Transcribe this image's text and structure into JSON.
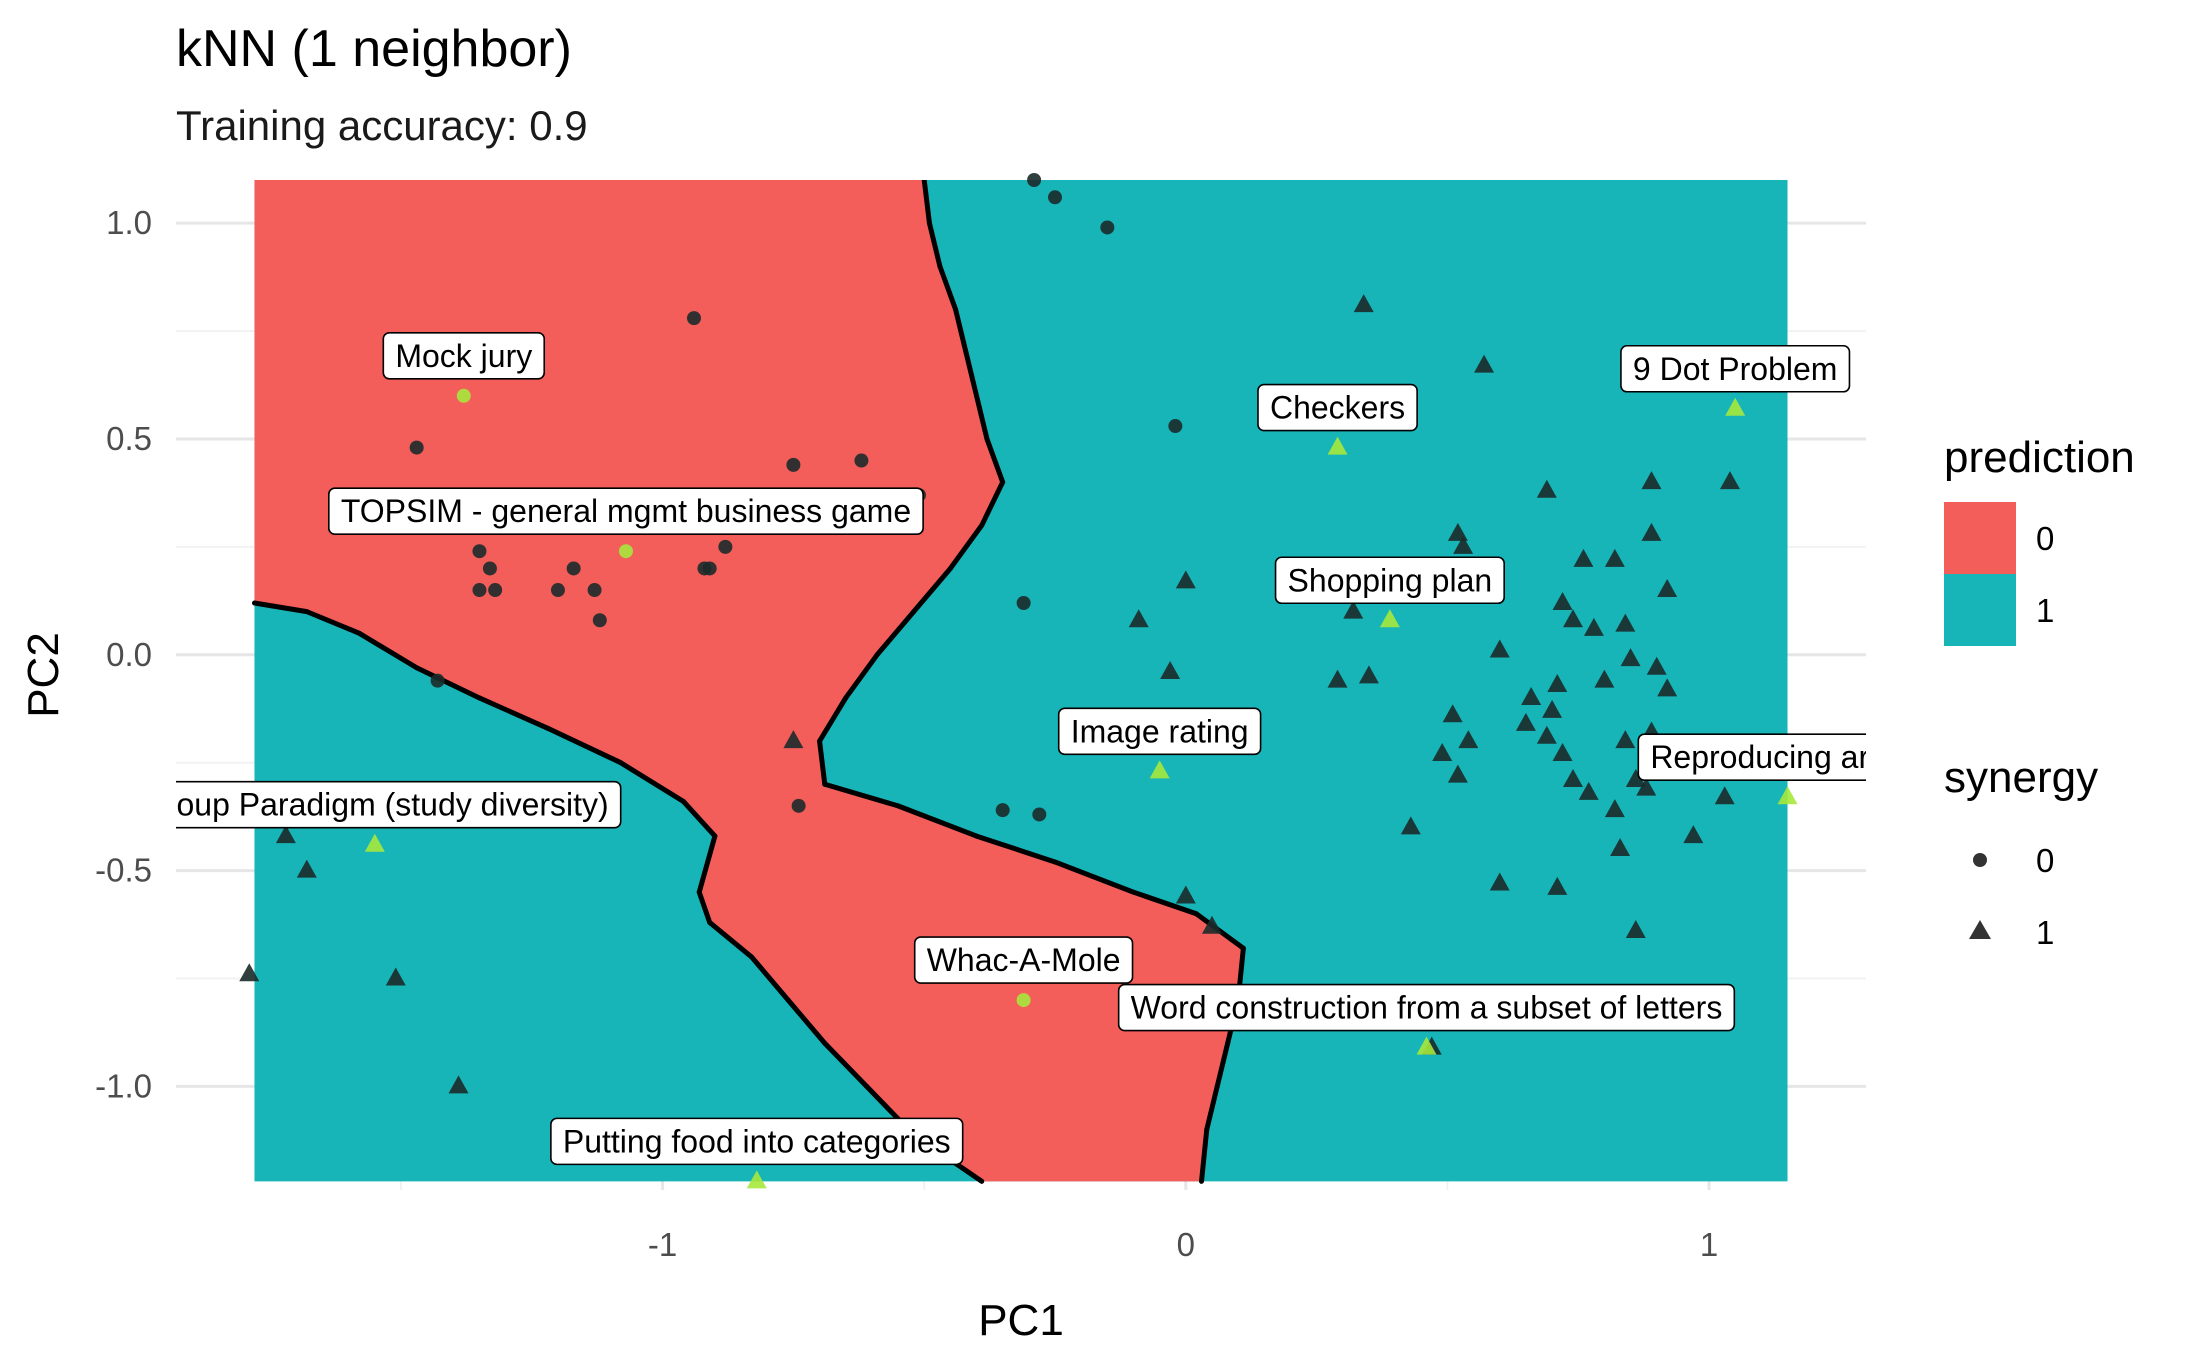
{
  "chart_data": {
    "type": "scatter",
    "title": "kNN (1 neighbor)",
    "subtitle": "Training accuracy: 0.9",
    "xlabel": "PC1",
    "ylabel": "PC2",
    "xlim": [
      -1.93,
      1.3
    ],
    "ylim": [
      -1.24,
      1.1
    ],
    "x_ticks": [
      -1,
      0,
      1
    ],
    "x_tick_labels": [
      "-1",
      "0",
      "1"
    ],
    "y_ticks": [
      -1.0,
      -0.5,
      0.0,
      0.5,
      1.0
    ],
    "y_tick_labels": [
      "-1.0",
      "-0.5",
      "0.0",
      "0.5",
      "1.0"
    ],
    "grid": true,
    "colors": {
      "prediction_0": "#F35E5A",
      "prediction_1": "#17B5B8",
      "highlight": "#A6E83C",
      "point": "#1c2a2a",
      "boundary": "#000000"
    },
    "legends": {
      "prediction": {
        "title": "prediction",
        "entries": [
          "0",
          "1"
        ]
      },
      "synergy": {
        "title": "synergy",
        "entries": [
          "0",
          "1"
        ]
      }
    },
    "legend_position": "right",
    "region_bounds": {
      "x": [
        -1.78,
        1.15
      ],
      "y": [
        -1.22,
        1.1
      ]
    },
    "regions": [
      {
        "prediction": "0",
        "polygon": [
          [
            -1.78,
            1.1
          ],
          [
            -0.5,
            1.1
          ],
          [
            -0.49,
            1.0
          ],
          [
            -0.47,
            0.9
          ],
          [
            -0.44,
            0.8
          ],
          [
            -0.42,
            0.7
          ],
          [
            -0.4,
            0.6
          ],
          [
            -0.38,
            0.5
          ],
          [
            -0.35,
            0.4
          ],
          [
            -0.39,
            0.3
          ],
          [
            -0.45,
            0.2
          ],
          [
            -0.52,
            0.1
          ],
          [
            -0.59,
            0.0
          ],
          [
            -0.65,
            -0.1
          ],
          [
            -0.7,
            -0.2
          ],
          [
            -0.69,
            -0.3
          ],
          [
            -0.55,
            -0.35
          ],
          [
            -0.4,
            -0.42
          ],
          [
            -0.25,
            -0.48
          ],
          [
            -0.1,
            -0.55
          ],
          [
            0.02,
            -0.6
          ],
          [
            0.11,
            -0.68
          ],
          [
            0.1,
            -0.8
          ],
          [
            0.08,
            -0.9
          ],
          [
            0.06,
            -1.0
          ],
          [
            0.04,
            -1.1
          ],
          [
            0.03,
            -1.22
          ],
          [
            -0.39,
            -1.22
          ],
          [
            -0.45,
            -1.17
          ],
          [
            -0.53,
            -1.1
          ],
          [
            -0.61,
            -1.0
          ],
          [
            -0.69,
            -0.9
          ],
          [
            -0.76,
            -0.8
          ],
          [
            -0.83,
            -0.7
          ],
          [
            -0.91,
            -0.62
          ],
          [
            -0.93,
            -0.55
          ],
          [
            -0.9,
            -0.42
          ],
          [
            -0.96,
            -0.34
          ],
          [
            -1.08,
            -0.25
          ],
          [
            -1.22,
            -0.17
          ],
          [
            -1.35,
            -0.1
          ],
          [
            -1.47,
            -0.03
          ],
          [
            -1.58,
            0.05
          ],
          [
            -1.68,
            0.1
          ],
          [
            -1.78,
            0.12
          ]
        ]
      }
    ],
    "series": [
      {
        "name": "0",
        "shape": "circle",
        "points": [
          [
            -0.29,
            1.1
          ],
          [
            -0.25,
            1.06
          ],
          [
            -0.15,
            0.99
          ],
          [
            -0.94,
            0.78
          ],
          [
            -1.47,
            0.48
          ],
          [
            -0.75,
            0.44
          ],
          [
            -0.62,
            0.45
          ],
          [
            -0.51,
            0.37
          ],
          [
            -1.35,
            0.24
          ],
          [
            -1.33,
            0.2
          ],
          [
            -1.35,
            0.15
          ],
          [
            -1.32,
            0.15
          ],
          [
            -1.2,
            0.15
          ],
          [
            -1.17,
            0.2
          ],
          [
            -1.13,
            0.15
          ],
          [
            -1.12,
            0.08
          ],
          [
            -0.92,
            0.2
          ],
          [
            -0.91,
            0.2
          ],
          [
            -0.88,
            0.25
          ],
          [
            -0.31,
            0.12
          ],
          [
            -0.02,
            0.53
          ],
          [
            -1.43,
            -0.06
          ],
          [
            -0.74,
            -0.35
          ],
          [
            -0.35,
            -0.36
          ],
          [
            -0.28,
            -0.37
          ]
        ]
      },
      {
        "name": "1",
        "shape": "triangle",
        "points": [
          [
            0.34,
            0.81
          ],
          [
            0.57,
            0.67
          ],
          [
            0.69,
            0.38
          ],
          [
            0.89,
            0.4
          ],
          [
            1.04,
            0.4
          ],
          [
            0.52,
            0.28
          ],
          [
            0.53,
            0.25
          ],
          [
            0.76,
            0.22
          ],
          [
            0.82,
            0.22
          ],
          [
            0.89,
            0.28
          ],
          [
            0.72,
            0.12
          ],
          [
            0.74,
            0.08
          ],
          [
            0.78,
            0.06
          ],
          [
            0.84,
            0.07
          ],
          [
            0.92,
            0.15
          ],
          [
            0.0,
            0.17
          ],
          [
            -0.09,
            0.08
          ],
          [
            0.32,
            0.1
          ],
          [
            0.54,
            0.19
          ],
          [
            0.6,
            0.01
          ],
          [
            0.66,
            -0.1
          ],
          [
            0.71,
            -0.07
          ],
          [
            0.7,
            -0.13
          ],
          [
            0.8,
            -0.06
          ],
          [
            0.85,
            -0.01
          ],
          [
            0.9,
            -0.03
          ],
          [
            0.92,
            -0.08
          ],
          [
            0.29,
            -0.06
          ],
          [
            0.35,
            -0.05
          ],
          [
            -0.03,
            -0.04
          ],
          [
            0.51,
            -0.14
          ],
          [
            0.54,
            -0.2
          ],
          [
            0.65,
            -0.16
          ],
          [
            0.69,
            -0.19
          ],
          [
            0.72,
            -0.23
          ],
          [
            0.74,
            -0.29
          ],
          [
            0.84,
            -0.2
          ],
          [
            0.89,
            -0.18
          ],
          [
            0.49,
            -0.23
          ],
          [
            0.52,
            -0.28
          ],
          [
            0.86,
            -0.29
          ],
          [
            0.77,
            -0.32
          ],
          [
            0.82,
            -0.36
          ],
          [
            0.88,
            -0.31
          ],
          [
            0.97,
            -0.42
          ],
          [
            1.03,
            -0.33
          ],
          [
            0.43,
            -0.4
          ],
          [
            0.6,
            -0.53
          ],
          [
            0.71,
            -0.54
          ],
          [
            0.83,
            -0.45
          ],
          [
            0.86,
            -0.64
          ],
          [
            0.0,
            -0.56
          ],
          [
            0.05,
            -0.63
          ],
          [
            -0.75,
            -0.2
          ],
          [
            -1.72,
            -0.42
          ],
          [
            -1.68,
            -0.5
          ],
          [
            -1.51,
            -0.75
          ],
          [
            -1.39,
            -1.0
          ],
          [
            -1.79,
            -0.74
          ],
          [
            0.47,
            -0.91
          ]
        ]
      },
      {
        "name": "labeled",
        "shape": "mixed",
        "points": [
          {
            "x": -1.38,
            "y": 0.6,
            "shape": "circle",
            "label": "Mock jury"
          },
          {
            "x": -1.07,
            "y": 0.24,
            "shape": "circle",
            "label": "TOPSIM - general mgmt business game"
          },
          {
            "x": 0.29,
            "y": 0.48,
            "shape": "triangle",
            "label": "Checkers"
          },
          {
            "x": 1.05,
            "y": 0.57,
            "shape": "triangle",
            "label": "9 Dot Problem"
          },
          {
            "x": 0.39,
            "y": 0.08,
            "shape": "triangle",
            "label": "Shopping plan"
          },
          {
            "x": -0.05,
            "y": -0.27,
            "shape": "triangle",
            "label": "Image rating"
          },
          {
            "x": 1.15,
            "y": -0.33,
            "shape": "triangle",
            "label": "Reproducing arts"
          },
          {
            "x": -1.55,
            "y": -0.44,
            "shape": "triangle",
            "label": "Group Paradigm (study diversity)"
          },
          {
            "x": -0.31,
            "y": -0.8,
            "shape": "circle",
            "label": "Whac-A-Mole"
          },
          {
            "x": 0.46,
            "y": -0.91,
            "shape": "triangle",
            "label": "Word construction from a subset of letters"
          },
          {
            "x": -0.82,
            "y": -1.22,
            "shape": "triangle",
            "label": "Putting food into categories"
          }
        ]
      }
    ]
  }
}
